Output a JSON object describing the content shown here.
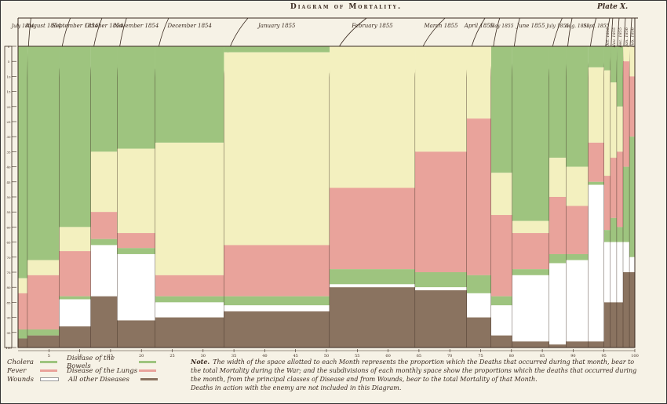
{
  "title": "Diagram of Mortality.",
  "plate": "Plate X.",
  "legend": {
    "left": [
      {
        "name": "Cholera",
        "color": "#9ec47f"
      },
      {
        "name": "Fever",
        "color": "#e9a39b"
      },
      {
        "name": "Wounds",
        "color": "#ffffff"
      }
    ],
    "right": [
      {
        "name": "Disease of the Bowels",
        "color": "#9ec47f"
      },
      {
        "name": "Disease of the Lungs",
        "color": "#e9a39b"
      },
      {
        "name": "All other Diseases",
        "color": "#8a7360"
      }
    ]
  },
  "note": {
    "label": "Note.",
    "text": "The width of the space allotted to each Month represents the proportion which the Deaths that occurred during that month, bear to the total Mortality during the War; and the subdivisions of each monthly space show the proportions which the deaths that occurred during the month, from the principal classes of Disease and from Wounds, bear to the total Mortality of that Month.",
    "text2": "Deaths in action with the enemy are not included in this Diagram."
  },
  "chart_data": {
    "type": "bar",
    "colors": {
      "green": "#9ec47f",
      "yellow": "#f3f0bf",
      "pink": "#e9a39b",
      "white": "#ffffff",
      "brown": "#8a7360"
    },
    "yticks": [
      0,
      5,
      10,
      15,
      20,
      25,
      30,
      35,
      40,
      45,
      50,
      55,
      60,
      65,
      70,
      75,
      80,
      85,
      90,
      95,
      100
    ],
    "xticks": [
      5,
      10,
      15,
      20,
      25,
      30,
      35,
      40,
      45,
      50,
      55,
      60,
      65,
      70,
      75,
      80,
      85,
      90,
      95,
      100
    ],
    "months": [
      {
        "label": "July 1854",
        "share": 0.9,
        "segments": [
          [
            "green",
            77
          ],
          [
            "yellow",
            5
          ],
          [
            "pink",
            12
          ],
          [
            "green",
            3
          ],
          [
            "brown",
            3
          ]
        ]
      },
      {
        "label": "August 1854",
        "share": 3.0,
        "segments": [
          [
            "green",
            71
          ],
          [
            "yellow",
            5
          ],
          [
            "pink",
            18
          ],
          [
            "green",
            2
          ],
          [
            "brown",
            4
          ]
        ]
      },
      {
        "label": "September 1854",
        "share": 3.0,
        "segments": [
          [
            "green",
            60
          ],
          [
            "yellow",
            8
          ],
          [
            "pink",
            15
          ],
          [
            "green",
            1
          ],
          [
            "white",
            9
          ],
          [
            "brown",
            7
          ]
        ]
      },
      {
        "label": "October 1854",
        "share": 2.5,
        "segments": [
          [
            "green",
            35
          ],
          [
            "yellow",
            20
          ],
          [
            "pink",
            9
          ],
          [
            "green",
            2
          ],
          [
            "white",
            17
          ],
          [
            "brown",
            17
          ]
        ]
      },
      {
        "label": "November 1854",
        "share": 3.6,
        "segments": [
          [
            "green",
            34
          ],
          [
            "yellow",
            28
          ],
          [
            "pink",
            5
          ],
          [
            "green",
            2
          ],
          [
            "white",
            22
          ],
          [
            "brown",
            9
          ]
        ]
      },
      {
        "label": "December 1854",
        "share": 6.5,
        "segments": [
          [
            "green",
            32
          ],
          [
            "yellow",
            44
          ],
          [
            "pink",
            7
          ],
          [
            "green",
            2
          ],
          [
            "white",
            5
          ],
          [
            "brown",
            10
          ]
        ]
      },
      {
        "label": "January 1855",
        "share": 10.0,
        "segments": [
          [
            "green",
            2
          ],
          [
            "yellow",
            64
          ],
          [
            "pink",
            17
          ],
          [
            "green",
            3
          ],
          [
            "white",
            2
          ],
          [
            "brown",
            12
          ]
        ]
      },
      {
        "label": "February 1855",
        "share": 8.1,
        "segments": [
          [
            "yellow",
            47
          ],
          [
            "pink",
            27
          ],
          [
            "green",
            5
          ],
          [
            "white",
            1
          ],
          [
            "brown",
            20
          ]
        ]
      },
      {
        "label": "March 1855",
        "share": 4.9,
        "segments": [
          [
            "yellow",
            35
          ],
          [
            "pink",
            40
          ],
          [
            "green",
            5
          ],
          [
            "white",
            1
          ],
          [
            "brown",
            19
          ]
        ]
      },
      {
        "label": "April 1855",
        "share": 2.3,
        "segments": [
          [
            "yellow",
            24
          ],
          [
            "pink",
            52
          ],
          [
            "green",
            6
          ],
          [
            "white",
            8
          ],
          [
            "brown",
            10
          ]
        ]
      },
      {
        "label": "May 1855",
        "share": 2.0,
        "segments": [
          [
            "green",
            42
          ],
          [
            "yellow",
            14
          ],
          [
            "pink",
            27
          ],
          [
            "green",
            3
          ],
          [
            "white",
            10
          ],
          [
            "brown",
            4
          ]
        ]
      },
      {
        "label": "June 1855",
        "share": 3.5,
        "segments": [
          [
            "green",
            58
          ],
          [
            "yellow",
            4
          ],
          [
            "pink",
            12
          ],
          [
            "green",
            2
          ],
          [
            "white",
            22
          ],
          [
            "brown",
            2
          ]
        ]
      },
      {
        "label": "July 1855",
        "share": 1.6,
        "segments": [
          [
            "green",
            37
          ],
          [
            "yellow",
            13
          ],
          [
            "pink",
            19
          ],
          [
            "green",
            3
          ],
          [
            "white",
            27
          ],
          [
            "brown",
            1
          ]
        ]
      },
      {
        "label": "Aug. 1855",
        "share": 2.1,
        "segments": [
          [
            "green",
            40
          ],
          [
            "yellow",
            13
          ],
          [
            "pink",
            16
          ],
          [
            "green",
            2
          ],
          [
            "white",
            27
          ],
          [
            "brown",
            2
          ]
        ]
      },
      {
        "label": "Sept. 1855",
        "share": 1.5,
        "segments": [
          [
            "green",
            7
          ],
          [
            "yellow",
            25
          ],
          [
            "pink",
            13
          ],
          [
            "green",
            1
          ],
          [
            "white",
            52
          ],
          [
            "brown",
            2
          ]
        ]
      },
      {
        "label": "Oct. 1855",
        "share": 0.6,
        "segments": [
          [
            "green",
            8
          ],
          [
            "yellow",
            35
          ],
          [
            "pink",
            18
          ],
          [
            "green",
            4
          ],
          [
            "white",
            20
          ],
          [
            "brown",
            15
          ]
        ]
      },
      {
        "label": "Nov. 1855",
        "share": 0.6,
        "segments": [
          [
            "green",
            12
          ],
          [
            "yellow",
            25
          ],
          [
            "pink",
            20
          ],
          [
            "green",
            8
          ],
          [
            "white",
            20
          ],
          [
            "brown",
            15
          ]
        ]
      },
      {
        "label": "Dec. 1855",
        "share": 0.6,
        "segments": [
          [
            "green",
            20
          ],
          [
            "yellow",
            15
          ],
          [
            "pink",
            25
          ],
          [
            "green",
            5
          ],
          [
            "white",
            20
          ],
          [
            "brown",
            15
          ]
        ]
      },
      {
        "label": "Jan. 1856",
        "share": 0.6,
        "segments": [
          [
            "yellow",
            5
          ],
          [
            "pink",
            35
          ],
          [
            "green",
            25
          ],
          [
            "white",
            10
          ],
          [
            "brown",
            25
          ]
        ]
      },
      {
        "label": "Feb. 1856",
        "share": 0.5,
        "segments": [
          [
            "yellow",
            10
          ],
          [
            "pink",
            20
          ],
          [
            "green",
            40
          ],
          [
            "white",
            5
          ],
          [
            "brown",
            25
          ]
        ]
      }
    ]
  }
}
